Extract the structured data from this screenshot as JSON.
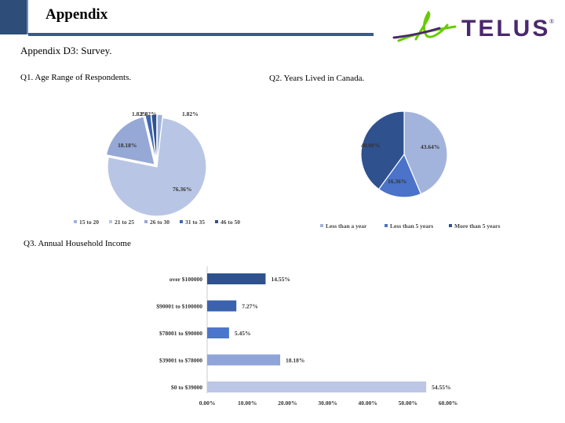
{
  "slide": {
    "title": "Appendix",
    "subtitle": "Appendix D3: Survey.",
    "logo_text": "TELUS",
    "logo_mark": "®",
    "accent": "#2e4d78",
    "logo_purple": "#4b286d",
    "logo_green": "#66cc00"
  },
  "q1": {
    "label": "Q1. Age Range of Respondents."
  },
  "q2": {
    "label": "Q2.  Years Lived in Canada."
  },
  "q3": {
    "label": "Q3. Annual Household Income"
  },
  "chart_data": [
    {
      "type": "pie",
      "categories": [
        "15 to 20",
        "21 to 25",
        "26 to 30",
        "31 to 35",
        "46 to 50"
      ],
      "values": [
        1.82,
        76.36,
        18.18,
        1.82,
        1.82
      ],
      "data_labels": [
        "1.82%",
        "76.36%",
        "18.18%",
        "1.82%",
        "1.82%"
      ],
      "colors": [
        "#9fb3d9",
        "#b9c5e4",
        "#95a8d6",
        "#3f66b2",
        "#2f528e"
      ],
      "legend": "bottom"
    },
    {
      "type": "pie",
      "categories": [
        "Less than a year",
        "Less than 5 years",
        "More than 5 years"
      ],
      "values": [
        43.64,
        16.36,
        40.0
      ],
      "data_labels": [
        "43.64%",
        "16.36%",
        "40.00%"
      ],
      "colors": [
        "#a3b4dc",
        "#4a73c9",
        "#2f528e"
      ],
      "legend": "bottom"
    },
    {
      "type": "bar",
      "orientation": "horizontal",
      "categories": [
        "$0 to $39000",
        "$39001 to $78000",
        "$78001 to $90000",
        "$90001 to $100000",
        "over $100000"
      ],
      "values": [
        54.55,
        18.18,
        5.45,
        7.27,
        14.55
      ],
      "data_labels": [
        "54.55%",
        "18.18%",
        "5.45%",
        "7.27%",
        "14.55%"
      ],
      "colors": [
        "#bcc7e6",
        "#8fa4d7",
        "#4b76cc",
        "#3a62ad",
        "#2f528e"
      ],
      "xlim": [
        0,
        60
      ],
      "ticks": [
        "0.00%",
        "10.00%",
        "20.00%",
        "30.00%",
        "40.00%",
        "50.00%",
        "60.00%"
      ]
    }
  ]
}
